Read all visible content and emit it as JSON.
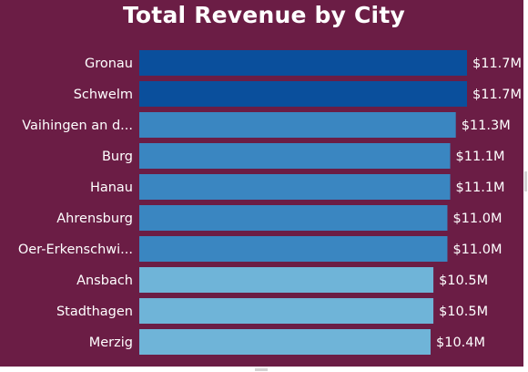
{
  "chart_data": {
    "type": "bar",
    "orientation": "horizontal",
    "title": "Total Revenue by City",
    "categories": [
      "Gronau",
      "Schwelm",
      "Vaihingen an d...",
      "Burg",
      "Hanau",
      "Ahrensburg",
      "Oer-Erkenschwi...",
      "Ansbach",
      "Stadthagen",
      "Merzig"
    ],
    "values": [
      11.7,
      11.7,
      11.3,
      11.1,
      11.1,
      11.0,
      11.0,
      10.5,
      10.5,
      10.4
    ],
    "value_labels": [
      "$11.7M",
      "$11.7M",
      "$11.3M",
      "$11.1M",
      "$11.1M",
      "$11.0M",
      "$11.0M",
      "$10.5M",
      "$10.5M",
      "$10.4M"
    ],
    "unit": "$M",
    "xlim": [
      0,
      11.7
    ],
    "grid": false,
    "legend": "none",
    "colors": {
      "background": "#6b1d45",
      "bar_dark": "#0a4f9c",
      "bar_mid": "#3a86c1",
      "bar_light": "#6fb4d8",
      "text": "#ffffff"
    }
  }
}
